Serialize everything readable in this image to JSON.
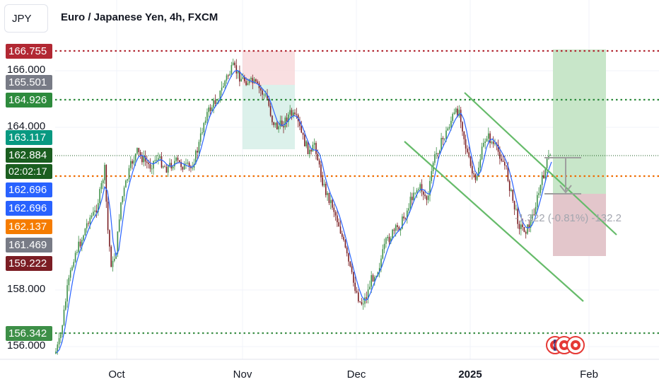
{
  "symbol": "JPY",
  "title": "Euro / Japanese Yen, 4h, FXCM",
  "colors": {
    "red_level": "#b22833",
    "green_level": "#2e8b3d",
    "orange_level": "#ef6c00",
    "candle_up": "#3d8f47",
    "candle_down": "#7a1d22",
    "ma": "#2962ff",
    "channel": "#66bb6a"
  },
  "y_axis_ticks": [
    "166.000",
    "164.000",
    "158.000",
    "156.000"
  ],
  "x_axis_ticks": [
    {
      "label": "Oct",
      "bold": false
    },
    {
      "label": "Nov",
      "bold": false
    },
    {
      "label": "Dec",
      "bold": false
    },
    {
      "label": "2025",
      "bold": true
    },
    {
      "label": "Feb",
      "bold": false
    }
  ],
  "price_labels": [
    {
      "text": "166.755",
      "bg": "#b22833"
    },
    {
      "text": "165.501",
      "bg": "#787b86"
    },
    {
      "text": "164.926",
      "bg": "#2e8b3d"
    },
    {
      "text": "163.117",
      "bg": "#089981"
    },
    {
      "text": "162.884",
      "bg": "#1b5e20"
    },
    {
      "text": "02:02:17",
      "bg": "#1b5e20"
    },
    {
      "text": "162.696",
      "bg": "#2962ff"
    },
    {
      "text": "162.696",
      "bg": "#2962ff"
    },
    {
      "text": "162.137",
      "bg": "#f57c00"
    },
    {
      "text": "161.469",
      "bg": "#787b86"
    },
    {
      "text": "159.222",
      "bg": "#7b1d24"
    },
    {
      "text": "156.342",
      "bg": "#3d8f47"
    }
  ],
  "measure": {
    "text": "-1.322 (-0.81%) -132.2"
  },
  "events": [
    "event-icon",
    "event-icon",
    "event-icon"
  ]
}
